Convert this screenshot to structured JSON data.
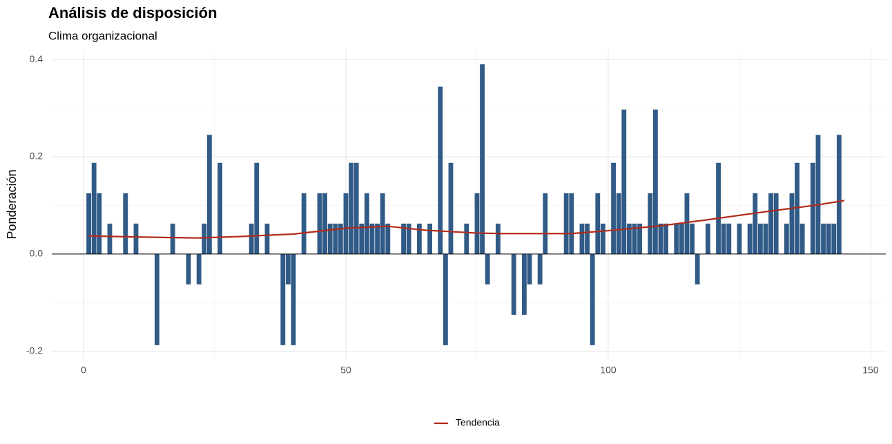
{
  "chart_data": {
    "type": "bar",
    "title": "Análisis de disposición",
    "subtitle": "Clima organizacional",
    "y_label": "Ponderación",
    "x": [
      1,
      2,
      3,
      4,
      5,
      6,
      7,
      8,
      9,
      10,
      11,
      12,
      13,
      14,
      15,
      16,
      17,
      18,
      19,
      20,
      21,
      22,
      23,
      24,
      25,
      26,
      27,
      28,
      29,
      30,
      31,
      32,
      33,
      34,
      35,
      36,
      37,
      38,
      39,
      40,
      41,
      42,
      43,
      44,
      45,
      46,
      47,
      48,
      49,
      50,
      51,
      52,
      53,
      54,
      55,
      56,
      57,
      58,
      59,
      60,
      61,
      62,
      63,
      64,
      65,
      66,
      67,
      68,
      69,
      70,
      71,
      72,
      73,
      74,
      75,
      76,
      77,
      78,
      79,
      80,
      81,
      82,
      83,
      84,
      85,
      86,
      87,
      88,
      89,
      90,
      91,
      92,
      93,
      94,
      95,
      96,
      97,
      98,
      99,
      100,
      101,
      102,
      103,
      104,
      105,
      106,
      107,
      108,
      109,
      110,
      111,
      112,
      113,
      114,
      115,
      116,
      117,
      118,
      119,
      120,
      121,
      122,
      123,
      124,
      125,
      126,
      127,
      128,
      129,
      130,
      131,
      132,
      133,
      134,
      135,
      136,
      137,
      138,
      139,
      140,
      141,
      142,
      143,
      144
    ],
    "series": [
      {
        "type": "bar",
        "color": "#315b87",
        "values": [
          0.125,
          0.1875,
          0.125,
          0,
          0.0625,
          0,
          0,
          0.125,
          0,
          0.0625,
          0,
          0,
          0,
          -0.1875,
          0,
          0,
          0.0625,
          0,
          0,
          -0.0625,
          0,
          -0.0625,
          0.0625,
          0.245,
          0,
          0.1875,
          0,
          0,
          0,
          0,
          0,
          0.0625,
          0.1875,
          0,
          0.0625,
          0,
          0,
          -0.1875,
          -0.0625,
          -0.1875,
          0,
          0.125,
          0,
          0,
          0.125,
          0.125,
          0.0625,
          0.0625,
          0.0625,
          0.125,
          0.1875,
          0.1875,
          0.0625,
          0.125,
          0.0625,
          0.0625,
          0.125,
          0.0625,
          0,
          0,
          0.0625,
          0.0625,
          0,
          0.0625,
          0,
          0.0625,
          0,
          0.344,
          -0.1875,
          0.1875,
          0,
          0,
          0.0625,
          0,
          0.125,
          0.39,
          -0.0625,
          0,
          0.0625,
          0,
          0,
          -0.125,
          0,
          -0.125,
          -0.0625,
          0,
          -0.0625,
          0.125,
          0,
          0,
          0,
          0.125,
          0.125,
          0,
          0.0625,
          0.0625,
          -0.1875,
          0.125,
          0.0625,
          0,
          0.1875,
          0.125,
          0.297,
          0.0625,
          0.0625,
          0.0625,
          0,
          0.125,
          0.297,
          0.0625,
          0.0625,
          0,
          0.0625,
          0.0625,
          0.125,
          0.0625,
          -0.0625,
          0,
          0.0625,
          0,
          0.1875,
          0.0625,
          0.0625,
          0,
          0.0625,
          0,
          0.0625,
          0.125,
          0.0625,
          0.0625,
          0.125,
          0.125,
          0,
          0.0625,
          0.125,
          0.1875,
          0.0625,
          0,
          0.1875,
          0.245,
          0.0625,
          0.0625,
          0.0625,
          0.245
        ]
      },
      {
        "type": "line",
        "name": "Tendencia",
        "color": "#b22a1a",
        "x": [
          1,
          15,
          22,
          30,
          40,
          50,
          58,
          65,
          75,
          80,
          93,
          100,
          110,
          120,
          130,
          140,
          145
        ],
        "values": [
          0.037,
          0.034,
          0.033,
          0.036,
          0.041,
          0.053,
          0.057,
          0.049,
          0.043,
          0.042,
          0.042,
          0.048,
          0.058,
          0.072,
          0.087,
          0.101,
          0.11
        ]
      }
    ],
    "xlim": [
      -6.05,
      152.9
    ],
    "ylim": [
      -0.216,
      0.42
    ],
    "xticks": [
      0,
      50,
      100,
      150
    ],
    "yticks": [
      {
        "value": -0.2,
        "label": "-0.2"
      },
      {
        "value": 0,
        "label": "0.0"
      },
      0.2,
      0.4
    ],
    "grid": true,
    "legend": "bottom"
  }
}
